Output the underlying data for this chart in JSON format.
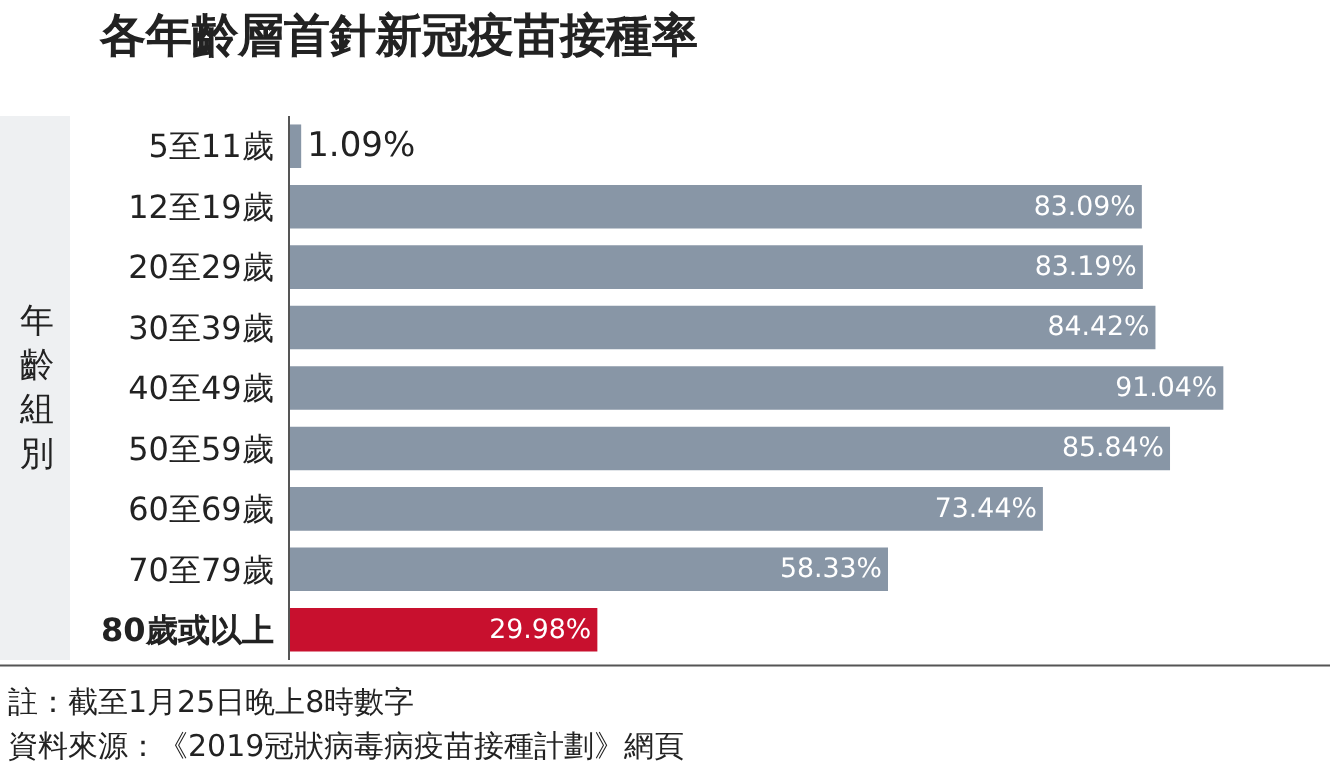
{
  "chart_data": {
    "type": "bar",
    "orientation": "horizontal",
    "title": "各年齡層首針新冠疫苗接種率",
    "ylabel": "年齡組別",
    "categories": [
      "5至11歲",
      "12至19歲",
      "20至29歲",
      "30至39歲",
      "40至49歲",
      "50至59歲",
      "60至69歲",
      "70至79歲",
      "80歲或以上"
    ],
    "values": [
      1.09,
      83.09,
      83.19,
      84.42,
      91.04,
      85.84,
      73.44,
      58.33,
      29.98
    ],
    "value_labels": [
      "1.09%",
      "83.09%",
      "83.19%",
      "84.42%",
      "91.04%",
      "85.84%",
      "73.44%",
      "58.33%",
      "29.98%"
    ],
    "colors": [
      "#8896a6",
      "#8896a6",
      "#8896a6",
      "#8896a6",
      "#8896a6",
      "#8896a6",
      "#8896a6",
      "#8896a6",
      "#c8102e"
    ],
    "data_labels": true,
    "legend": false,
    "annotations": [
      "註：截至1月25日晚上8時數字",
      "資料來源：《2019冠狀病毒病疫苗接種計劃》網頁"
    ]
  }
}
